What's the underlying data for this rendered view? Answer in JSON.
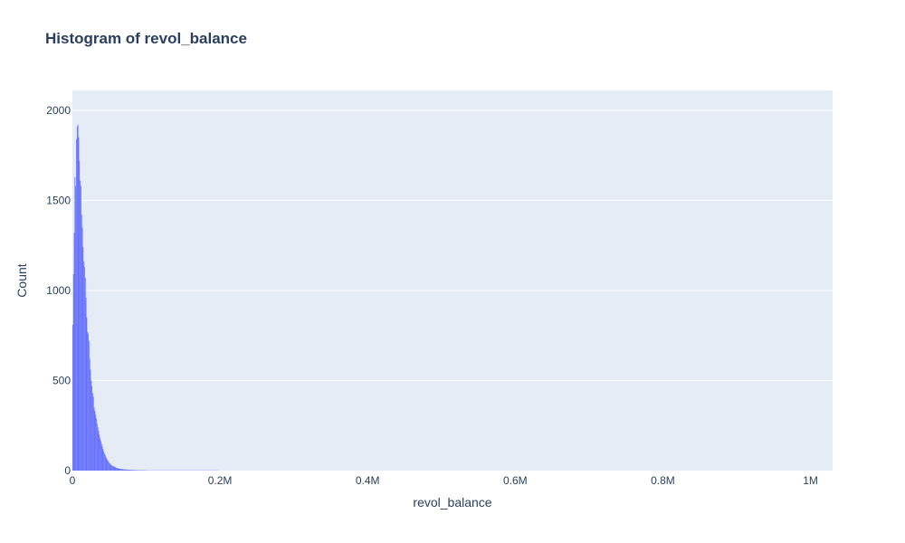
{
  "chart_data": {
    "type": "bar",
    "title": "Histogram of revol_balance",
    "xlabel": "revol_balance",
    "ylabel": "Count",
    "xlim": [
      0,
      1030000
    ],
    "ylim": [
      0,
      2110
    ],
    "x_ticks": [
      {
        "value": 0,
        "label": "0"
      },
      {
        "value": 200000,
        "label": "0.2M"
      },
      {
        "value": 400000,
        "label": "0.4M"
      },
      {
        "value": 600000,
        "label": "0.6M"
      },
      {
        "value": 800000,
        "label": "0.8M"
      },
      {
        "value": 1000000,
        "label": "1M"
      }
    ],
    "y_ticks": [
      {
        "value": 0,
        "label": "0"
      },
      {
        "value": 500,
        "label": "500"
      },
      {
        "value": 1000,
        "label": "1000"
      },
      {
        "value": 1500,
        "label": "1500"
      },
      {
        "value": 2000,
        "label": "2000"
      }
    ],
    "bin_width": 1000,
    "bin_start": 0,
    "values": [
      810,
      1090,
      1320,
      1630,
      1580,
      1840,
      1910,
      1920,
      1850,
      1720,
      1610,
      1580,
      1420,
      1350,
      1240,
      1160,
      1130,
      1070,
      960,
      850,
      770,
      760,
      720,
      620,
      560,
      500,
      470,
      430,
      410,
      350,
      330,
      310,
      290,
      260,
      240,
      220,
      200,
      180,
      165,
      150,
      135,
      120,
      105,
      95,
      85,
      75,
      66,
      58,
      52,
      46,
      40,
      36,
      32,
      28,
      26,
      24,
      22,
      20,
      18,
      16,
      14,
      13,
      12,
      11,
      10,
      9,
      9,
      8,
      8,
      7,
      7,
      6,
      6,
      6,
      5,
      5,
      5,
      5,
      4,
      4,
      4,
      4,
      3,
      3,
      3,
      3,
      3,
      3,
      2,
      2,
      2,
      2,
      2,
      2,
      2,
      2,
      2,
      2,
      2,
      2,
      1,
      1,
      1,
      1,
      1,
      1,
      1,
      1,
      1,
      1,
      1,
      1,
      1,
      1,
      1,
      1,
      1,
      1,
      1,
      1,
      1,
      1,
      1,
      1,
      1,
      1,
      1,
      1,
      1,
      1,
      1,
      1,
      1,
      1,
      1,
      1,
      1,
      1,
      1,
      1,
      1,
      1,
      1,
      1,
      1,
      1,
      1,
      1,
      1,
      1,
      1,
      1,
      1,
      1,
      1,
      1,
      1,
      1,
      1,
      1,
      1,
      1,
      1,
      1,
      1,
      1,
      1,
      1,
      1,
      1,
      1,
      1,
      1,
      1,
      1,
      1,
      1,
      1,
      1,
      1,
      1,
      1,
      1,
      1,
      1,
      1,
      1,
      1,
      1,
      1,
      1,
      1,
      1,
      1,
      1,
      1,
      1,
      1
    ],
    "bar_color": "#636efa",
    "plot_bg": "#e5ecf6",
    "grid": true
  }
}
